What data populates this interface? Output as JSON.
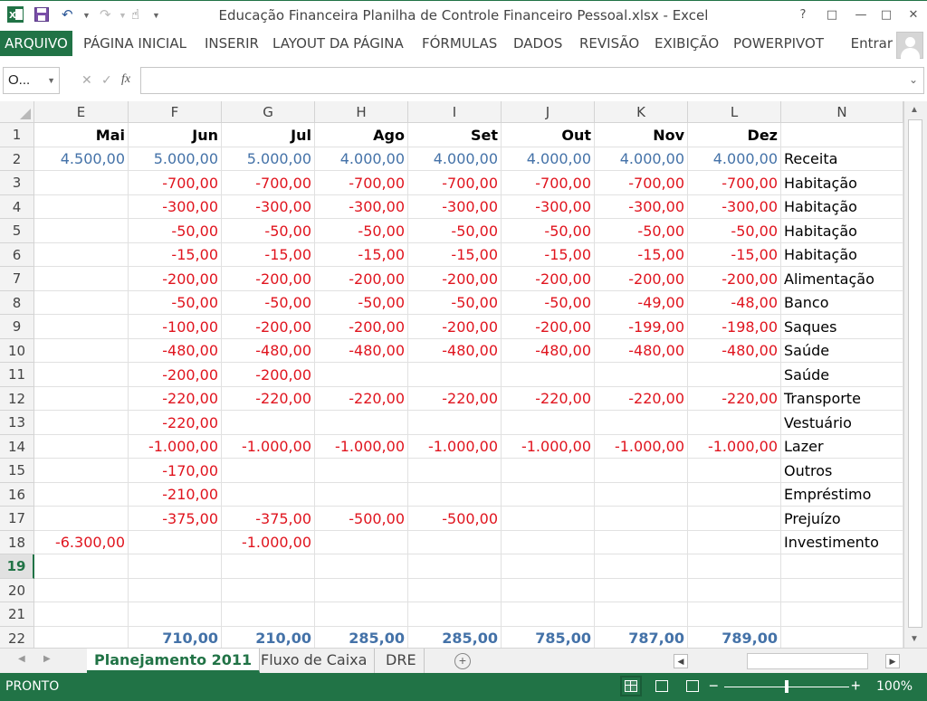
{
  "window": {
    "title": "Educação Financeira Planilha de Controle Financeiro Pessoal.xlsx - Excel",
    "help": "?",
    "controls": [
      "ribbon-options",
      "minimize",
      "maximize",
      "close"
    ]
  },
  "ribbon": {
    "tabs": [
      "ARQUIVO",
      "PÁGINA INICIAL",
      "INSERIR",
      "LAYOUT DA PÁGINA",
      "FÓRMULAS",
      "DADOS",
      "REVISÃO",
      "EXIBIÇÃO",
      "POWERPIVOT"
    ],
    "signin": "Entrar"
  },
  "formula_bar": {
    "name_box": "O...",
    "fx": "fx",
    "content": ""
  },
  "columns": [
    "E",
    "F",
    "G",
    "H",
    "I",
    "J",
    "K",
    "L",
    "N"
  ],
  "rows": [
    {
      "n": "1",
      "cells": [
        "Mai",
        "Jun",
        "Jul",
        "Ago",
        "Set",
        "Out",
        "Nov",
        "Dez",
        ""
      ]
    },
    {
      "n": "2",
      "cells": [
        "4.500,00",
        "5.000,00",
        "5.000,00",
        "4.000,00",
        "4.000,00",
        "4.000,00",
        "4.000,00",
        "4.000,00",
        "Receita"
      ]
    },
    {
      "n": "3",
      "cells": [
        "",
        "-700,00",
        "-700,00",
        "-700,00",
        "-700,00",
        "-700,00",
        "-700,00",
        "-700,00",
        "Habitação"
      ]
    },
    {
      "n": "4",
      "cells": [
        "",
        "-300,00",
        "-300,00",
        "-300,00",
        "-300,00",
        "-300,00",
        "-300,00",
        "-300,00",
        "Habitação"
      ]
    },
    {
      "n": "5",
      "cells": [
        "",
        "-50,00",
        "-50,00",
        "-50,00",
        "-50,00",
        "-50,00",
        "-50,00",
        "-50,00",
        "Habitação"
      ]
    },
    {
      "n": "6",
      "cells": [
        "",
        "-15,00",
        "-15,00",
        "-15,00",
        "-15,00",
        "-15,00",
        "-15,00",
        "-15,00",
        "Habitação"
      ]
    },
    {
      "n": "7",
      "cells": [
        "",
        "-200,00",
        "-200,00",
        "-200,00",
        "-200,00",
        "-200,00",
        "-200,00",
        "-200,00",
        "Alimentação"
      ]
    },
    {
      "n": "8",
      "cells": [
        "",
        "-50,00",
        "-50,00",
        "-50,00",
        "-50,00",
        "-50,00",
        "-49,00",
        "-48,00",
        "Banco"
      ]
    },
    {
      "n": "9",
      "cells": [
        "",
        "-100,00",
        "-200,00",
        "-200,00",
        "-200,00",
        "-200,00",
        "-199,00",
        "-198,00",
        "Saques"
      ]
    },
    {
      "n": "10",
      "cells": [
        "",
        "-480,00",
        "-480,00",
        "-480,00",
        "-480,00",
        "-480,00",
        "-480,00",
        "-480,00",
        "Saúde"
      ]
    },
    {
      "n": "11",
      "cells": [
        "",
        "-200,00",
        "-200,00",
        "",
        "",
        "",
        "",
        "",
        "Saúde"
      ]
    },
    {
      "n": "12",
      "cells": [
        "",
        "-220,00",
        "-220,00",
        "-220,00",
        "-220,00",
        "-220,00",
        "-220,00",
        "-220,00",
        "Transporte"
      ]
    },
    {
      "n": "13",
      "cells": [
        "",
        "-220,00",
        "",
        "",
        "",
        "",
        "",
        "",
        "Vestuário"
      ]
    },
    {
      "n": "14",
      "cells": [
        "",
        "-1.000,00",
        "-1.000,00",
        "-1.000,00",
        "-1.000,00",
        "-1.000,00",
        "-1.000,00",
        "-1.000,00",
        "Lazer"
      ]
    },
    {
      "n": "15",
      "cells": [
        "",
        "-170,00",
        "",
        "",
        "",
        "",
        "",
        "",
        "Outros"
      ]
    },
    {
      "n": "16",
      "cells": [
        "",
        "-210,00",
        "",
        "",
        "",
        "",
        "",
        "",
        "Empréstimo"
      ]
    },
    {
      "n": "17",
      "cells": [
        "",
        "-375,00",
        "-375,00",
        "-500,00",
        "-500,00",
        "",
        "",
        "",
        "Prejuízo"
      ]
    },
    {
      "n": "18",
      "cells": [
        "-6.300,00",
        "",
        "-1.000,00",
        "",
        "",
        "",
        "",
        "",
        "Investimento"
      ]
    },
    {
      "n": "19",
      "cells": [
        "",
        "",
        "",
        "",
        "",
        "",
        "",
        "",
        ""
      ]
    },
    {
      "n": "20",
      "cells": [
        "",
        "",
        "",
        "",
        "",
        "",
        "",
        "",
        ""
      ]
    },
    {
      "n": "21",
      "cells": [
        "",
        "",
        "",
        "",
        "",
        "",
        "",
        "",
        ""
      ]
    },
    {
      "n": "22",
      "cells": [
        "",
        "710,00",
        "210,00",
        "285,00",
        "285,00",
        "785,00",
        "787,00",
        "789,00",
        ""
      ]
    }
  ],
  "selected_row": "19",
  "sheets": {
    "tabs": [
      "Planejamento 2011",
      "Fluxo de Caixa",
      "DRE"
    ],
    "active": "Planejamento 2011",
    "add": "+"
  },
  "status": {
    "text": "PRONTO",
    "zoom": "100%"
  },
  "colors": {
    "accent": "#217346",
    "positive": "#4472a8",
    "negative": "#e0141e"
  }
}
